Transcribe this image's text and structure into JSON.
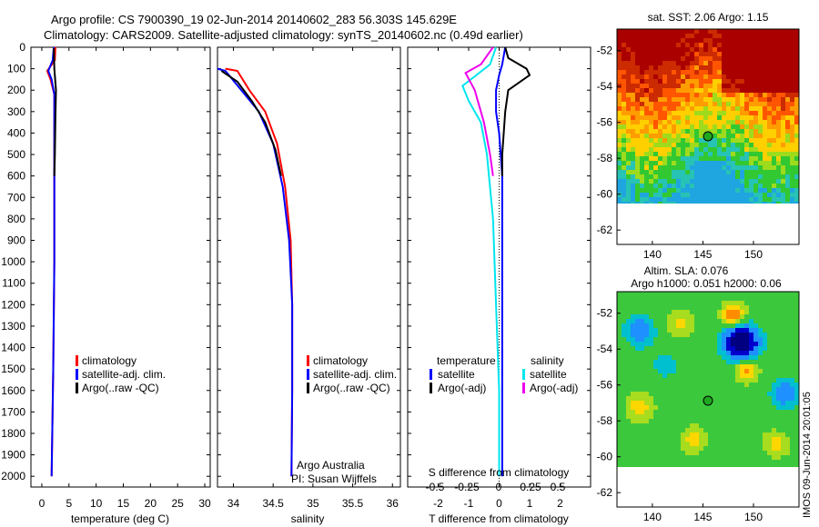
{
  "title": {
    "line1": "Argo profile: CS 7900390_19 02-Jun-2014 20140602_283 56.303S 145.629E",
    "line2": "Climatology: CARS2009. Satellite-adjusted climatology: synTS_20140602.nc (0.49d earlier)"
  },
  "colors": {
    "climatology": "#ff0000",
    "satellite": "#0000ff",
    "argo": "#000000",
    "sat_salinity": "#00e5ee",
    "argo_salinity": "#ee00ee"
  },
  "depth_ticks": [
    "0",
    "100",
    "200",
    "300",
    "400",
    "500",
    "600",
    "700",
    "800",
    "900",
    "1000",
    "1100",
    "1200",
    "1300",
    "1400",
    "1500",
    "1600",
    "1700",
    "1800",
    "1900",
    "2000"
  ],
  "chart_data": [
    {
      "type": "line",
      "xlabel": "temperature (deg C)",
      "xlim": [
        -2,
        31
      ],
      "ylim": [
        0,
        2050
      ],
      "x_ticks": [
        "0",
        "5",
        "10",
        "15",
        "20",
        "25",
        "30"
      ],
      "legend": [
        "climatology",
        "satellite-adj. clim.",
        "Argo(..raw -QC)"
      ],
      "series": [
        {
          "name": "climatology",
          "points": [
            [
              2.5,
              0
            ],
            [
              2.4,
              60
            ],
            [
              1.0,
              110
            ],
            [
              1.6,
              150
            ],
            [
              2.3,
              220
            ],
            [
              2.3,
              500
            ],
            [
              2.3,
              1000
            ],
            [
              2.1,
              1500
            ],
            [
              1.8,
              2000
            ]
          ]
        },
        {
          "name": "satellite-adj. clim.",
          "points": [
            [
              2.2,
              0
            ],
            [
              2.0,
              60
            ],
            [
              1.2,
              110
            ],
            [
              1.8,
              150
            ],
            [
              2.3,
              220
            ],
            [
              2.3,
              500
            ],
            [
              2.3,
              1000
            ],
            [
              2.1,
              1500
            ],
            [
              1.8,
              2000
            ]
          ]
        },
        {
          "name": "Argo(..raw -QC)",
          "points": [
            [
              2.2,
              5
            ],
            [
              2.3,
              100
            ],
            [
              2.6,
              200
            ],
            [
              2.5,
              320
            ],
            [
              2.4,
              500
            ],
            [
              2.3,
              600
            ]
          ]
        }
      ]
    },
    {
      "type": "line",
      "xlabel": "salinity",
      "xlim": [
        33.8,
        36.1
      ],
      "ylim": [
        0,
        2050
      ],
      "x_ticks": [
        "34",
        "34.5",
        "35",
        "35.5",
        "36"
      ],
      "legend": [
        "climatology",
        "satellite-adj. clim.",
        "Argo(..raw -QC)"
      ],
      "annotations": [
        "Argo Australia",
        "PI: Susan Wijffels"
      ],
      "series": [
        {
          "name": "climatology",
          "points": [
            [
              33.9,
              100
            ],
            [
              34.05,
              110
            ],
            [
              34.2,
              200
            ],
            [
              34.4,
              300
            ],
            [
              34.55,
              450
            ],
            [
              34.65,
              650
            ],
            [
              34.72,
              900
            ],
            [
              34.74,
              1200
            ],
            [
              34.74,
              1600
            ],
            [
              34.73,
              2000
            ]
          ]
        },
        {
          "name": "satellite-adj. clim.",
          "points": [
            [
              33.8,
              100
            ],
            [
              33.9,
              110
            ],
            [
              34.1,
              200
            ],
            [
              34.32,
              300
            ],
            [
              34.5,
              450
            ],
            [
              34.62,
              650
            ],
            [
              34.7,
              900
            ],
            [
              34.74,
              1200
            ],
            [
              34.74,
              1600
            ],
            [
              34.73,
              2000
            ]
          ]
        },
        {
          "name": "Argo(..raw -QC)",
          "points": [
            [
              33.85,
              110
            ],
            [
              34.05,
              160
            ],
            [
              34.23,
              250
            ],
            [
              34.4,
              350
            ],
            [
              34.53,
              480
            ],
            [
              34.6,
              600
            ]
          ]
        }
      ]
    },
    {
      "type": "line",
      "xlabel": "T difference from climatology",
      "xlim": [
        -3,
        3
      ],
      "ylim": [
        0,
        2050
      ],
      "x_ticks": [
        "-2",
        "-1",
        "0",
        "1",
        "2"
      ],
      "secondary_axis_label": "S difference from climatology",
      "secondary_ticks": [
        "-0.5",
        "-0.25",
        "0",
        "0.25",
        "0.5"
      ],
      "legend_temperature": [
        "temperature",
        "satellite",
        "Argo(-adj)"
      ],
      "legend_salinity": [
        "salinity",
        "satellite",
        "Argo(-adj)"
      ],
      "series": [
        {
          "name": "satellite",
          "points": [
            [
              0.2,
              0
            ],
            [
              0.1,
              80
            ],
            [
              0.0,
              130
            ],
            [
              -0.1,
              200
            ],
            [
              -0.1,
              300
            ],
            [
              0.0,
              400
            ],
            [
              0.1,
              600
            ],
            [
              0.1,
              900
            ],
            [
              0.1,
              1500
            ],
            [
              0.1,
              2000
            ]
          ]
        },
        {
          "name": "Argo(-adj)",
          "points": [
            [
              0.2,
              0
            ],
            [
              0.3,
              50
            ],
            [
              0.9,
              100
            ],
            [
              1.0,
              130
            ],
            [
              0.3,
              200
            ],
            [
              0.2,
              300
            ],
            [
              0.1,
              500
            ],
            [
              0.1,
              600
            ]
          ]
        },
        {
          "name": "satellite",
          "points": [
            [
              -0.1,
              0
            ],
            [
              -0.3,
              80
            ],
            [
              -1.2,
              180
            ],
            [
              -1.0,
              250
            ],
            [
              -0.6,
              350
            ],
            [
              -0.4,
              500
            ],
            [
              -0.2,
              800
            ],
            [
              -0.1,
              1200
            ],
            [
              0.0,
              1600
            ],
            [
              0.0,
              2000
            ]
          ]
        },
        {
          "name": "Argo(-adj)",
          "points": [
            [
              -0.2,
              0
            ],
            [
              -0.6,
              80
            ],
            [
              -1.1,
              120
            ],
            [
              -0.8,
              200
            ],
            [
              -0.5,
              350
            ],
            [
              -0.3,
              500
            ],
            [
              -0.2,
              600
            ]
          ]
        }
      ]
    },
    {
      "type": "heatmap",
      "title": "sat. SST: 2.06 Argo: 1.15",
      "x_ticks": [
        "140",
        "145",
        "150"
      ],
      "y_ticks": [
        "-52",
        "-54",
        "-56",
        "-58",
        "-60",
        "-62"
      ],
      "xlim": [
        136.5,
        154.5
      ],
      "ylim": [
        -62.8,
        -50.8
      ],
      "marker": [
        145.6,
        -56.3
      ]
    },
    {
      "type": "heatmap",
      "title": "Altim. SLA: 0.076",
      "subtitle": "Argo h1000: 0.051 h2000: 0.06",
      "x_ticks": [
        "140",
        "145",
        "150"
      ],
      "y_ticks": [
        "-52",
        "-54",
        "-56",
        "-58",
        "-60",
        "-62"
      ],
      "xlim": [
        136.5,
        154.5
      ],
      "ylim": [
        -62.8,
        -50.8
      ],
      "marker": [
        145.6,
        -56.3
      ]
    }
  ],
  "stamp": "IMOS 09-Jun-2014 20:01:05"
}
